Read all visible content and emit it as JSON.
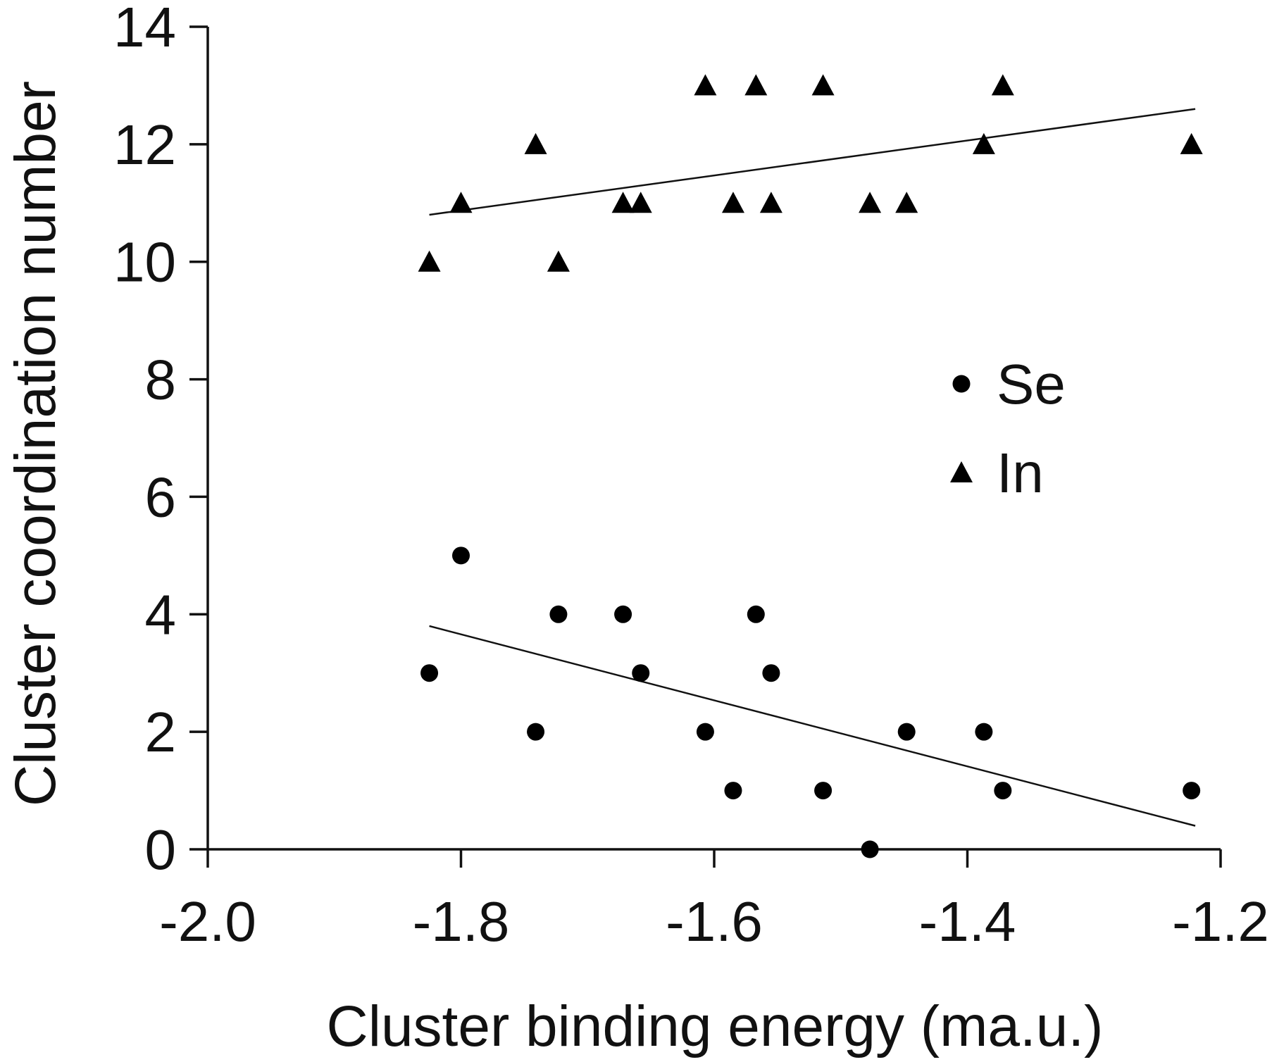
{
  "chart_data": {
    "type": "scatter",
    "title": "",
    "xlabel": "Cluster binding energy (ma.u.)",
    "ylabel": "Cluster coordination number",
    "xlim": [
      -2.0,
      -1.2
    ],
    "ylim": [
      0,
      14
    ],
    "x_ticks": [
      -2.0,
      -1.8,
      -1.6,
      -1.4,
      -1.2
    ],
    "x_tick_labels": [
      "-2.0",
      "-1.8",
      "-1.6",
      "-1.4",
      "-1.2"
    ],
    "y_ticks": [
      0,
      2,
      4,
      6,
      8,
      10,
      12,
      14
    ],
    "y_tick_labels": [
      "0",
      "2",
      "4",
      "6",
      "8",
      "10",
      "12",
      "14"
    ],
    "grid": false,
    "legend_position": "right-middle",
    "series": [
      {
        "name": "Se",
        "marker": "circle",
        "color": "#000000",
        "points": [
          {
            "x": -1.825,
            "y": 3
          },
          {
            "x": -1.8,
            "y": 5
          },
          {
            "x": -1.741,
            "y": 2
          },
          {
            "x": -1.723,
            "y": 4
          },
          {
            "x": -1.672,
            "y": 4
          },
          {
            "x": -1.658,
            "y": 3
          },
          {
            "x": -1.607,
            "y": 2
          },
          {
            "x": -1.585,
            "y": 1
          },
          {
            "x": -1.567,
            "y": 4
          },
          {
            "x": -1.555,
            "y": 3
          },
          {
            "x": -1.514,
            "y": 1
          },
          {
            "x": -1.477,
            "y": 0
          },
          {
            "x": -1.448,
            "y": 2
          },
          {
            "x": -1.387,
            "y": 2
          },
          {
            "x": -1.372,
            "y": 1
          },
          {
            "x": -1.223,
            "y": 1
          }
        ],
        "trendline": {
          "x1": -1.825,
          "y1": 3.8,
          "x2": -1.22,
          "y2": 0.4
        }
      },
      {
        "name": "In",
        "marker": "triangle",
        "color": "#000000",
        "points": [
          {
            "x": -1.825,
            "y": 10
          },
          {
            "x": -1.8,
            "y": 11
          },
          {
            "x": -1.741,
            "y": 12
          },
          {
            "x": -1.723,
            "y": 10
          },
          {
            "x": -1.672,
            "y": 11
          },
          {
            "x": -1.658,
            "y": 11
          },
          {
            "x": -1.607,
            "y": 13
          },
          {
            "x": -1.585,
            "y": 11
          },
          {
            "x": -1.567,
            "y": 13
          },
          {
            "x": -1.555,
            "y": 11
          },
          {
            "x": -1.514,
            "y": 13
          },
          {
            "x": -1.477,
            "y": 11
          },
          {
            "x": -1.448,
            "y": 11
          },
          {
            "x": -1.387,
            "y": 12
          },
          {
            "x": -1.372,
            "y": 13
          },
          {
            "x": -1.223,
            "y": 12
          }
        ],
        "trendline": {
          "x1": -1.825,
          "y1": 10.8,
          "x2": -1.22,
          "y2": 12.6
        }
      }
    ]
  }
}
